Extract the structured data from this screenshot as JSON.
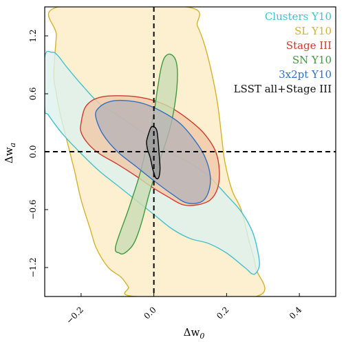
{
  "chart_data": {
    "type": "contour",
    "xlabel": "Δw",
    "xlabel_sub": "0",
    "ylabel": "Δw",
    "ylabel_sub": "a",
    "xlim": [
      -0.3,
      0.5
    ],
    "ylim": [
      -1.5,
      1.5
    ],
    "x_ticks": [
      -0.2,
      0.0,
      0.2,
      0.4
    ],
    "x_tick_labels": [
      "−0.2",
      "0.0",
      "0.2",
      "0.4"
    ],
    "y_ticks": [
      -1.2,
      -0.6,
      0.0,
      0.6,
      1.2
    ],
    "y_tick_labels": [
      "−1.2",
      "−0.6",
      "0.0",
      "0.6",
      "1.2"
    ],
    "reference_lines": {
      "x": 0.0,
      "y": 0.0,
      "style": "dashed"
    },
    "legend_placement": "top-right",
    "series": [
      {
        "name": "SL Y10",
        "color": "#d4b22b",
        "fill": "#fdecc6",
        "points": [
          [
            -0.262,
            1.5
          ],
          [
            -0.268,
            1.2
          ],
          [
            -0.275,
            0.8
          ],
          [
            -0.268,
            0.6
          ],
          [
            -0.258,
            0.4
          ],
          [
            -0.238,
            0.1
          ],
          [
            -0.218,
            -0.2
          ],
          [
            -0.2,
            -0.5
          ],
          [
            -0.175,
            -0.8
          ],
          [
            -0.158,
            -1.0
          ],
          [
            -0.125,
            -1.2
          ],
          [
            -0.09,
            -1.3
          ],
          [
            -0.07,
            -1.4
          ],
          [
            -0.05,
            -1.5
          ],
          [
            0.28,
            -1.5
          ],
          [
            0.28,
            -1.2
          ],
          [
            0.26,
            -0.9
          ],
          [
            0.24,
            -0.6
          ],
          [
            0.215,
            -0.4
          ],
          [
            0.195,
            -0.1
          ],
          [
            0.185,
            0.2
          ],
          [
            0.175,
            0.5
          ],
          [
            0.16,
            0.8
          ],
          [
            0.14,
            1.1
          ],
          [
            0.12,
            1.3
          ],
          [
            0.09,
            1.5
          ]
        ]
      },
      {
        "name": "Clusters Y10",
        "color": "#46c0cc",
        "fill": "#dcf1ee",
        "points": [
          [
            -0.3,
            0.98
          ],
          [
            -0.28,
            1.03
          ],
          [
            -0.265,
            1.0
          ],
          [
            -0.24,
            0.88
          ],
          [
            -0.2,
            0.7
          ],
          [
            -0.15,
            0.5
          ],
          [
            -0.1,
            0.38
          ],
          [
            -0.05,
            0.25
          ],
          [
            0.0,
            0.12
          ],
          [
            0.05,
            -0.02
          ],
          [
            0.1,
            -0.12
          ],
          [
            0.15,
            -0.25
          ],
          [
            0.2,
            -0.45
          ],
          [
            0.24,
            -0.62
          ],
          [
            0.27,
            -0.82
          ],
          [
            0.285,
            -1.02
          ],
          [
            0.29,
            -1.18
          ],
          [
            0.275,
            -1.27
          ],
          [
            0.25,
            -1.2
          ],
          [
            0.2,
            -1.05
          ],
          [
            0.15,
            -0.95
          ],
          [
            0.1,
            -0.9
          ],
          [
            0.05,
            -0.8
          ],
          [
            0.0,
            -0.65
          ],
          [
            -0.05,
            -0.5
          ],
          [
            -0.1,
            -0.35
          ],
          [
            -0.15,
            -0.2
          ],
          [
            -0.2,
            -0.02
          ],
          [
            -0.25,
            0.18
          ],
          [
            -0.29,
            0.38
          ],
          [
            -0.3,
            0.45
          ]
        ]
      },
      {
        "name": "Stage III",
        "color": "#cf3a2c",
        "fill": "#f0c9a8",
        "points": [
          [
            -0.2,
            0.3
          ],
          [
            -0.19,
            0.45
          ],
          [
            -0.17,
            0.53
          ],
          [
            -0.14,
            0.57
          ],
          [
            -0.1,
            0.58
          ],
          [
            -0.05,
            0.57
          ],
          [
            0.0,
            0.53
          ],
          [
            0.05,
            0.45
          ],
          [
            0.1,
            0.32
          ],
          [
            0.14,
            0.18
          ],
          [
            0.17,
            0.0
          ],
          [
            0.18,
            -0.2
          ],
          [
            0.175,
            -0.38
          ],
          [
            0.155,
            -0.5
          ],
          [
            0.12,
            -0.55
          ],
          [
            0.08,
            -0.55
          ],
          [
            0.04,
            -0.47
          ],
          [
            0.0,
            -0.38
          ],
          [
            -0.05,
            -0.25
          ],
          [
            -0.1,
            -0.13
          ],
          [
            -0.15,
            -0.02
          ],
          [
            -0.18,
            0.08
          ],
          [
            -0.2,
            0.2
          ]
        ]
      },
      {
        "name": "SN Y10",
        "color": "#3f9a3f",
        "fill": "#c9dcb3",
        "points": [
          [
            -0.105,
            -0.98
          ],
          [
            -0.07,
            -0.6
          ],
          [
            -0.04,
            -0.25
          ],
          [
            -0.02,
            0.05
          ],
          [
            0.0,
            0.4
          ],
          [
            0.01,
            0.65
          ],
          [
            0.02,
            0.87
          ],
          [
            0.03,
            0.98
          ],
          [
            0.045,
            1.01
          ],
          [
            0.06,
            0.95
          ],
          [
            0.065,
            0.8
          ],
          [
            0.06,
            0.55
          ],
          [
            0.045,
            0.25
          ],
          [
            0.02,
            -0.05
          ],
          [
            -0.01,
            -0.4
          ],
          [
            -0.035,
            -0.75
          ],
          [
            -0.055,
            -0.95
          ],
          [
            -0.08,
            -1.05
          ],
          [
            -0.095,
            -1.05
          ]
        ]
      },
      {
        "name": "3x2pt Y10",
        "color": "#2f6fc2",
        "fill": "#b8b3b6",
        "points": [
          [
            -0.16,
            0.37
          ],
          [
            -0.15,
            0.46
          ],
          [
            -0.12,
            0.52
          ],
          [
            -0.08,
            0.53
          ],
          [
            -0.03,
            0.5
          ],
          [
            0.02,
            0.42
          ],
          [
            0.07,
            0.3
          ],
          [
            0.11,
            0.13
          ],
          [
            0.14,
            -0.05
          ],
          [
            0.155,
            -0.25
          ],
          [
            0.15,
            -0.42
          ],
          [
            0.13,
            -0.52
          ],
          [
            0.09,
            -0.53
          ],
          [
            0.05,
            -0.44
          ],
          [
            0.0,
            -0.3
          ],
          [
            -0.05,
            -0.15
          ],
          [
            -0.1,
            0.0
          ],
          [
            -0.14,
            0.18
          ]
        ]
      },
      {
        "name": "LSST all+Stage III",
        "color": "#000000",
        "fill": "#97999b",
        "points": [
          [
            -0.02,
            0.1
          ],
          [
            -0.015,
            0.18
          ],
          [
            -0.008,
            0.25
          ],
          [
            0.0,
            0.26
          ],
          [
            0.008,
            0.22
          ],
          [
            0.012,
            0.1
          ],
          [
            0.015,
            -0.05
          ],
          [
            0.017,
            -0.18
          ],
          [
            0.013,
            -0.27
          ],
          [
            0.005,
            -0.27
          ],
          [
            -0.003,
            -0.18
          ],
          [
            -0.01,
            -0.06
          ],
          [
            -0.017,
            0.02
          ]
        ]
      }
    ],
    "legend": [
      {
        "label": "Clusters Y10",
        "color": "#46c0cc"
      },
      {
        "label": "SL Y10",
        "color": "#d4b22b"
      },
      {
        "label": "Stage III",
        "color": "#cf3a2c"
      },
      {
        "label": "SN Y10",
        "color": "#3f9a3f"
      },
      {
        "label": "3x2pt Y10",
        "color": "#2f6fc2"
      },
      {
        "label": "LSST all+Stage III",
        "color": "#111111"
      }
    ]
  }
}
